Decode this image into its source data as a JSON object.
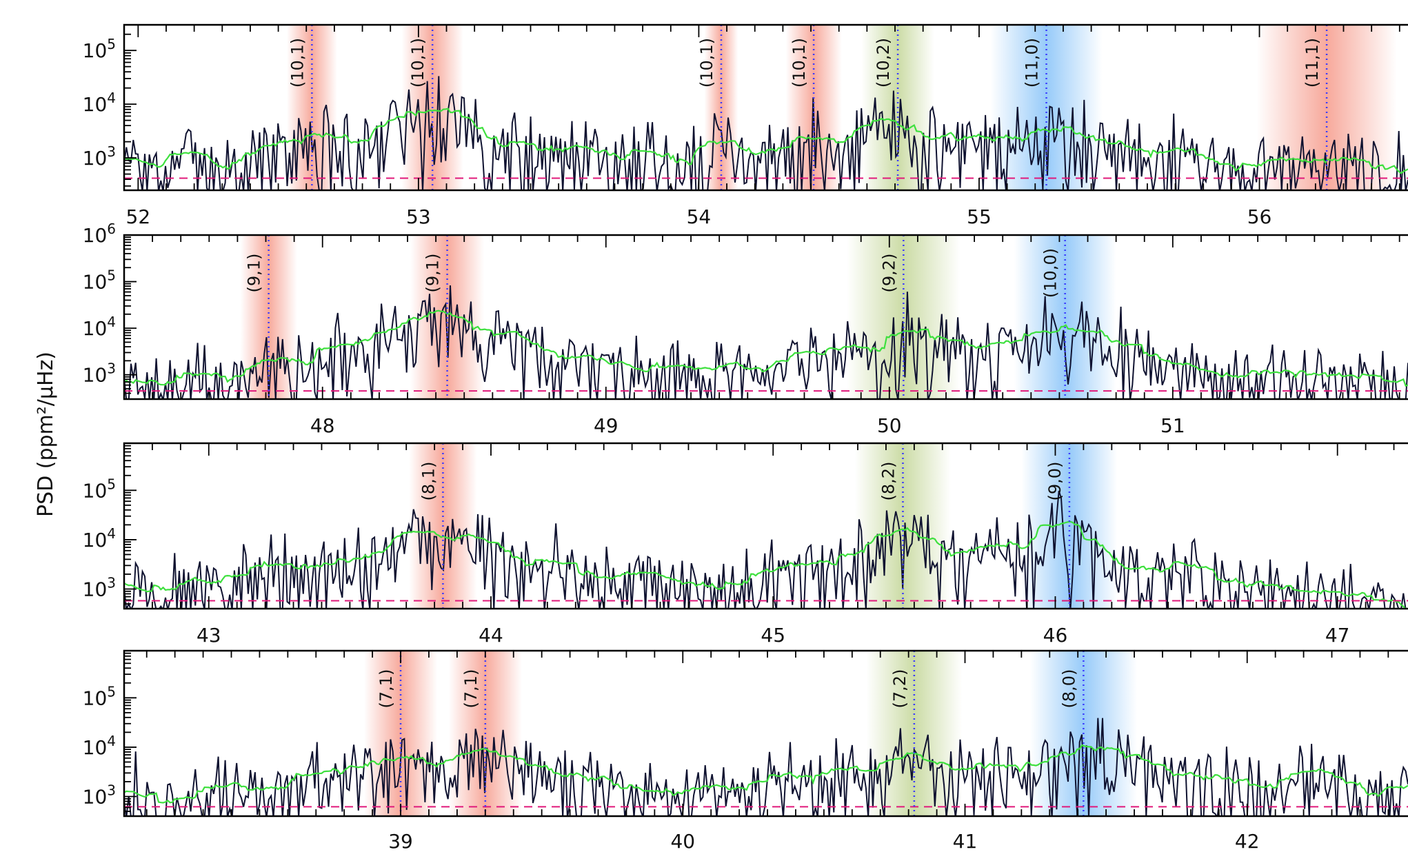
{
  "chart_data": {
    "type": "line",
    "ylabel": "PSD (ppm²/μHz)",
    "colors": {
      "psd": "#0f1230",
      "smoothed": "#3ee03e",
      "background_fit": "#e0187a",
      "mode_marker": "#3b3bff",
      "l1_band": "#f2705a",
      "l2_band": "#a9c46a",
      "l0_band": "#52a8f5"
    },
    "series": [
      {
        "role": "psd",
        "style": "solid"
      },
      {
        "role": "smoothed",
        "style": "solid"
      },
      {
        "role": "background_fit",
        "style": "dashed"
      }
    ],
    "panels": [
      {
        "xlim": [
          51.95,
          56.53
        ],
        "ylim": [
          250,
          300000
        ],
        "yscale": "log",
        "xticks": [
          52,
          53,
          54,
          55,
          56
        ],
        "yticks": [
          {
            "value": 1000,
            "base": "10",
            "exp": "3"
          },
          {
            "value": 10000,
            "base": "10",
            "exp": "4"
          },
          {
            "value": 100000,
            "base": "10",
            "exp": "5"
          }
        ],
        "background_level": 420,
        "modes": [
          {
            "label": "(10,1)",
            "freq": 52.62,
            "l": 1,
            "width": 0.09
          },
          {
            "label": "(10,1)",
            "freq": 53.05,
            "l": 1,
            "width": 0.11
          },
          {
            "label": "(10,1)",
            "freq": 54.08,
            "l": 1,
            "width": 0.06
          },
          {
            "label": "(10,1)",
            "freq": 54.41,
            "l": 1,
            "width": 0.1
          },
          {
            "label": "(10,2)",
            "freq": 54.71,
            "l": 2,
            "width": 0.13
          },
          {
            "label": "(11,0)",
            "freq": 55.24,
            "l": 0,
            "width": 0.2
          },
          {
            "label": "(11,1)",
            "freq": 56.24,
            "l": 1,
            "width": 0.25
          }
        ],
        "peaks": [
          {
            "freq": 52.62,
            "height": 1300,
            "width": 0.09
          },
          {
            "freq": 52.93,
            "height": 2000,
            "width": 0.1
          },
          {
            "freq": 53.05,
            "height": 8000,
            "width": 0.1
          },
          {
            "freq": 53.55,
            "height": 900,
            "width": 0.15
          },
          {
            "freq": 54.08,
            "height": 1500,
            "width": 0.03
          },
          {
            "freq": 54.41,
            "height": 1400,
            "width": 0.08
          },
          {
            "freq": 54.71,
            "height": 4500,
            "width": 0.12
          },
          {
            "freq": 55.24,
            "height": 3500,
            "width": 0.18
          },
          {
            "freq": 56.2,
            "height": 900,
            "width": 0.06
          }
        ]
      },
      {
        "xlim": [
          47.3,
          51.83
        ],
        "ylim": [
          300,
          1000000
        ],
        "yscale": "log",
        "xticks": [
          48,
          49,
          50,
          51
        ],
        "yticks": [
          {
            "value": 1000,
            "base": "10",
            "exp": "3"
          },
          {
            "value": 10000,
            "base": "10",
            "exp": "4"
          },
          {
            "value": 100000,
            "base": "10",
            "exp": "5"
          },
          {
            "value": 1000000,
            "base": "10",
            "exp": "6"
          }
        ],
        "background_level": 450,
        "modes": [
          {
            "label": "(9,1)",
            "freq": 47.81,
            "l": 1,
            "width": 0.1
          },
          {
            "label": "(9,1)",
            "freq": 48.44,
            "l": 1,
            "width": 0.13
          },
          {
            "label": "(9,2)",
            "freq": 50.05,
            "l": 2,
            "width": 0.2
          },
          {
            "label": "(10,0)",
            "freq": 50.62,
            "l": 0,
            "width": 0.18
          }
        ],
        "peaks": [
          {
            "freq": 47.83,
            "height": 1300,
            "width": 0.03
          },
          {
            "freq": 48.2,
            "height": 1800,
            "width": 0.15
          },
          {
            "freq": 48.42,
            "height": 18000,
            "width": 0.1
          },
          {
            "freq": 48.7,
            "height": 1600,
            "width": 0.12
          },
          {
            "freq": 49.78,
            "height": 1500,
            "width": 0.1
          },
          {
            "freq": 50.07,
            "height": 7000,
            "width": 0.14
          },
          {
            "freq": 50.35,
            "height": 1500,
            "width": 0.1
          },
          {
            "freq": 50.64,
            "height": 7500,
            "width": 0.16
          }
        ]
      },
      {
        "xlim": [
          42.7,
          47.25
        ],
        "ylim": [
          400,
          900000
        ],
        "yscale": "log",
        "xticks": [
          43,
          44,
          45,
          46,
          47
        ],
        "yticks": [
          {
            "value": 1000,
            "base": "10",
            "exp": "3"
          },
          {
            "value": 10000,
            "base": "10",
            "exp": "4"
          },
          {
            "value": 100000,
            "base": "10",
            "exp": "5"
          }
        ],
        "background_level": 580,
        "modes": [
          {
            "label": "(8,1)",
            "freq": 43.83,
            "l": 1,
            "width": 0.12
          },
          {
            "label": "(8,2)",
            "freq": 45.46,
            "l": 2,
            "width": 0.17
          },
          {
            "label": "(9,0)",
            "freq": 46.05,
            "l": 0,
            "width": 0.17
          }
        ],
        "peaks": [
          {
            "freq": 43.82,
            "height": 18000,
            "width": 0.16
          },
          {
            "freq": 44.95,
            "height": 1200,
            "width": 0.1
          },
          {
            "freq": 45.42,
            "height": 10000,
            "width": 0.13
          },
          {
            "freq": 45.75,
            "height": 1500,
            "width": 0.1
          },
          {
            "freq": 46.02,
            "height": 12000,
            "width": 0.13
          },
          {
            "freq": 46.4,
            "height": 1000,
            "width": 0.1
          }
        ]
      },
      {
        "xlim": [
          38.02,
          42.57
        ],
        "ylim": [
          400,
          900000
        ],
        "yscale": "log",
        "xticks": [
          39,
          40,
          41,
          42
        ],
        "yticks": [
          {
            "value": 1000,
            "base": "10",
            "exp": "3"
          },
          {
            "value": 10000,
            "base": "10",
            "exp": "4"
          },
          {
            "value": 100000,
            "base": "10",
            "exp": "5"
          }
        ],
        "background_level": 620,
        "modes": [
          {
            "label": "(7,1)",
            "freq": 39.0,
            "l": 1,
            "width": 0.13
          },
          {
            "label": "(7,1)",
            "freq": 39.3,
            "l": 1,
            "width": 0.13
          },
          {
            "label": "(7,2)",
            "freq": 40.82,
            "l": 2,
            "width": 0.17
          },
          {
            "label": "(8,0)",
            "freq": 41.42,
            "l": 0,
            "width": 0.19
          }
        ],
        "peaks": [
          {
            "freq": 38.7,
            "height": 1300,
            "width": 0.1
          },
          {
            "freq": 38.98,
            "height": 2200,
            "width": 0.1
          },
          {
            "freq": 39.3,
            "height": 11000,
            "width": 0.13
          },
          {
            "freq": 40.5,
            "height": 1500,
            "width": 0.1
          },
          {
            "freq": 40.82,
            "height": 4500,
            "width": 0.13
          },
          {
            "freq": 41.15,
            "height": 1500,
            "width": 0.1
          },
          {
            "freq": 41.45,
            "height": 10000,
            "width": 0.15
          },
          {
            "freq": 42.25,
            "height": 1800,
            "width": 0.1
          }
        ]
      }
    ]
  }
}
